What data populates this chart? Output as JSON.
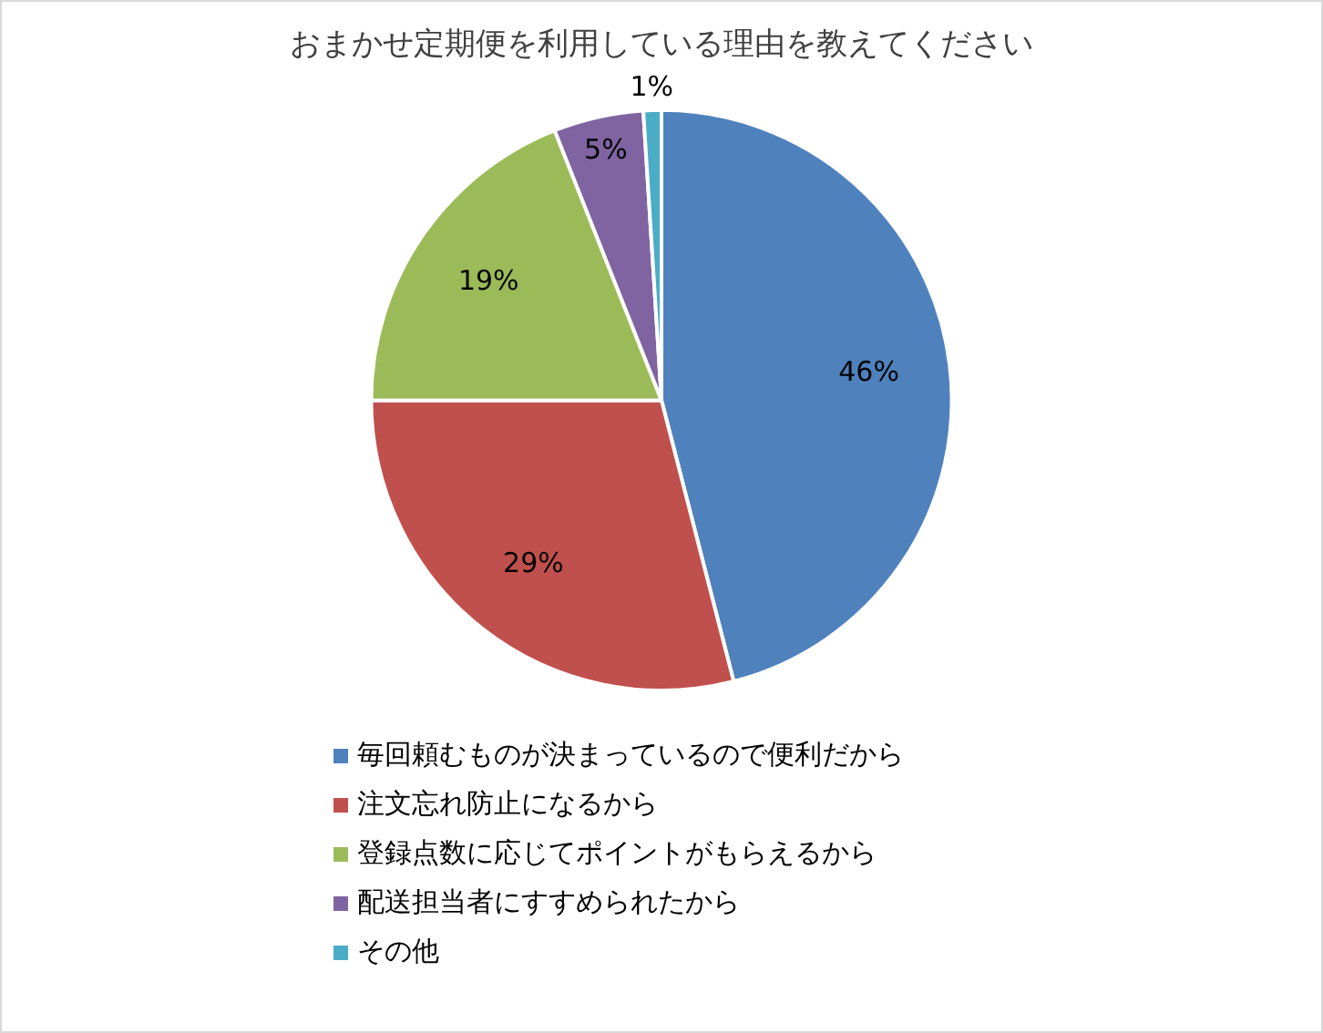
{
  "chart_data": {
    "type": "pie",
    "title": "おまかせ定期便を利用している理由を教えてください",
    "categories": [
      "毎回頼むものが決まっているので便利だから",
      "注文忘れ防止になるから",
      "登録点数に応じてポイントがもらえるから",
      "配送担当者にすすめられたから",
      "その他"
    ],
    "values": [
      46,
      29,
      19,
      5,
      1
    ],
    "colors": [
      "#4f81bd",
      "#c0504d",
      "#9bbb59",
      "#8064a2",
      "#4bacc6"
    ],
    "value_labels": [
      "46%",
      "29%",
      "19%",
      "5%",
      "1%"
    ],
    "legend": "bottom"
  }
}
